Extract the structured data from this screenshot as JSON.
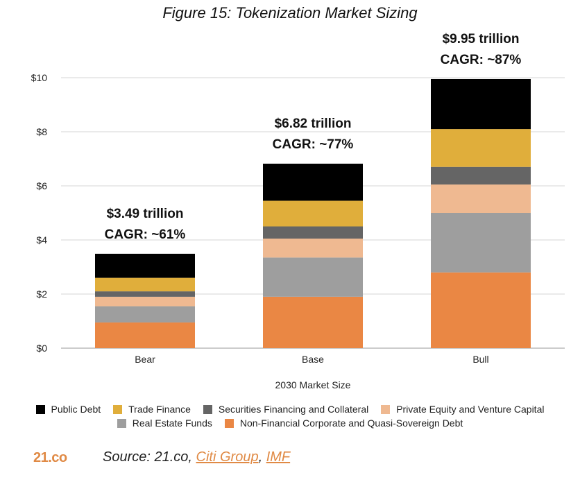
{
  "figure_title": "Figure 15: Tokenization Market Sizing",
  "chart_data": {
    "type": "bar",
    "stacked": true,
    "xlabel": "2030 Market Size",
    "ylabel": "",
    "ylim": [
      0,
      10
    ],
    "yticks": [
      "$0",
      "$2",
      "$4",
      "$6",
      "$8",
      "$10"
    ],
    "grid": true,
    "legend_position": "bottom",
    "categories": [
      "Bear",
      "Base",
      "Bull"
    ],
    "totals": [
      {
        "amount": "$3.49 trillion",
        "cagr": "CAGR: ~61%"
      },
      {
        "amount": "$6.82 trillion",
        "cagr": "CAGR: ~77%"
      },
      {
        "amount": "$9.95 trillion",
        "cagr": "CAGR: ~87%"
      }
    ],
    "series": [
      {
        "name": "Non-Financial Corporate and Quasi-Sovereign Debt",
        "color": "#ea8744",
        "values": [
          0.95,
          1.9,
          2.8
        ]
      },
      {
        "name": "Real Estate Funds",
        "color": "#9e9e9e",
        "values": [
          0.6,
          1.45,
          2.2
        ]
      },
      {
        "name": "Private Equity and Venture Capital",
        "color": "#efb991",
        "values": [
          0.35,
          0.7,
          1.05
        ]
      },
      {
        "name": "Securities Financing and Collateral",
        "color": "#656565",
        "values": [
          0.2,
          0.45,
          0.65
        ]
      },
      {
        "name": "Trade Finance",
        "color": "#e0ae3b",
        "values": [
          0.5,
          0.95,
          1.4
        ]
      },
      {
        "name": "Public Debt",
        "color": "#000000",
        "values": [
          0.89,
          1.37,
          1.85
        ]
      }
    ]
  },
  "legend": {
    "row1": [
      "Public Debt",
      "Trade Finance",
      "Securities Financing and Collateral",
      "Private Equity and Venture Capital"
    ],
    "row2": [
      "Real Estate Funds",
      "Non-Financial Corporate and Quasi-Sovereign Debt"
    ]
  },
  "footer": {
    "brand": "21.co",
    "source_prefix": "Source: 21.co, ",
    "link1": "Citi Group",
    "separator": ", ",
    "link2": "IMF"
  }
}
